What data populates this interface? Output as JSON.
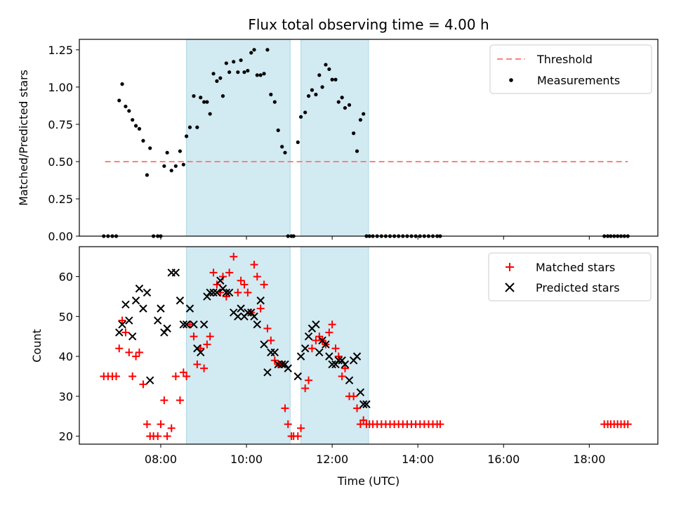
{
  "colors": {
    "band": "#add8e6",
    "threshold": "#ff7f7f",
    "matched": "#ff0000",
    "predicted": "#000000",
    "measurement": "#000000"
  },
  "chart_data": [
    {
      "type": "scatter",
      "title": "Flux total observing time = 4.00 h",
      "xlabel": "",
      "ylabel": "Matched/Predicted stars",
      "x_unit": "hours UTC",
      "xlim": [
        6.1,
        19.6
      ],
      "ylim": [
        0.0,
        1.32
      ],
      "yticks": [
        0.0,
        0.25,
        0.5,
        0.75,
        1.0,
        1.25
      ],
      "ytick_labels": [
        "0.00",
        "0.25",
        "0.50",
        "0.75",
        "1.00",
        "1.25"
      ],
      "xticks": [
        8,
        10,
        12,
        14,
        16,
        18
      ],
      "legend_position": "top-right",
      "observing_windows": [
        [
          8.6,
          11.02
        ],
        [
          11.27,
          12.85
        ]
      ],
      "threshold": {
        "name": "Threshold",
        "x": [
          6.7,
          18.9
        ],
        "y": 0.5
      },
      "series": [
        {
          "name": "Measurements",
          "marker": "dot",
          "x": [
            6.67,
            6.77,
            6.87,
            6.96,
            7.03,
            7.1,
            7.18,
            7.26,
            7.34,
            7.42,
            7.5,
            7.59,
            7.68,
            7.75,
            7.83,
            7.93,
            8.0,
            8.08,
            8.15,
            8.25,
            8.35,
            8.45,
            8.53,
            8.6,
            8.68,
            8.77,
            8.85,
            8.93,
            9.01,
            9.08,
            9.15,
            9.23,
            9.31,
            9.39,
            9.45,
            9.53,
            9.6,
            9.7,
            9.8,
            9.87,
            9.95,
            10.03,
            10.11,
            10.18,
            10.25,
            10.33,
            10.41,
            10.49,
            10.57,
            10.66,
            10.74,
            10.83,
            10.9,
            10.97,
            11.05,
            11.1,
            11.2,
            11.27,
            11.37,
            11.45,
            11.53,
            11.62,
            11.7,
            11.77,
            11.85,
            11.93,
            12.0,
            12.08,
            12.15,
            12.23,
            12.3,
            12.4,
            12.5,
            12.58,
            12.66,
            12.73,
            12.8,
            12.87,
            12.95,
            13.05,
            13.15,
            13.25,
            13.35,
            13.45,
            13.55,
            13.65,
            13.75,
            13.85,
            13.95,
            14.05,
            14.15,
            14.25,
            14.35,
            14.45,
            14.52,
            18.35,
            18.43,
            18.5,
            18.58,
            18.66,
            18.74,
            18.82,
            18.9
          ],
          "y": [
            0.0,
            0.0,
            0.0,
            0.0,
            0.91,
            1.02,
            0.87,
            0.84,
            0.78,
            0.74,
            0.72,
            0.64,
            0.41,
            0.59,
            0.0,
            0.0,
            0.0,
            0.47,
            0.56,
            0.44,
            0.47,
            0.57,
            0.48,
            0.67,
            0.73,
            0.94,
            0.73,
            0.93,
            0.9,
            0.9,
            0.82,
            1.09,
            1.04,
            1.06,
            0.94,
            1.16,
            1.1,
            1.17,
            1.1,
            1.18,
            1.1,
            1.11,
            1.23,
            1.25,
            1.08,
            1.08,
            1.09,
            1.25,
            0.95,
            0.9,
            0.71,
            0.6,
            0.56,
            0.0,
            0.0,
            0.0,
            0.63,
            0.8,
            0.83,
            0.94,
            0.98,
            0.95,
            1.08,
            1.0,
            1.15,
            1.12,
            1.05,
            1.05,
            0.9,
            0.93,
            0.86,
            0.88,
            0.69,
            0.57,
            0.78,
            0.82,
            0.0,
            0.0,
            0.0,
            0.0,
            0.0,
            0.0,
            0.0,
            0.0,
            0.0,
            0.0,
            0.0,
            0.0,
            0.0,
            0.0,
            0.0,
            0.0,
            0.0,
            0.0,
            0.0,
            0.0,
            0.0,
            0.0,
            0.0,
            0.0,
            0.0,
            0.0,
            0.0
          ]
        }
      ]
    },
    {
      "type": "scatter",
      "title": "",
      "xlabel": "Time (UTC)",
      "ylabel": "Count",
      "x_unit": "hours UTC",
      "xlim": [
        6.1,
        19.6
      ],
      "ylim": [
        18.0,
        67.5
      ],
      "yticks": [
        20,
        30,
        40,
        50,
        60
      ],
      "xticks": [
        8,
        10,
        12,
        14,
        16,
        18
      ],
      "xtick_labels": [
        "08:00",
        "10:00",
        "12:00",
        "14:00",
        "16:00",
        "18:00"
      ],
      "legend_position": "top-right",
      "observing_windows": [
        [
          8.6,
          11.02
        ],
        [
          11.27,
          12.85
        ]
      ],
      "series": [
        {
          "name": "Matched stars",
          "marker": "plus",
          "x": [
            6.67,
            6.77,
            6.87,
            6.96,
            7.03,
            7.1,
            7.18,
            7.26,
            7.34,
            7.42,
            7.5,
            7.59,
            7.68,
            7.75,
            7.83,
            7.93,
            8.0,
            8.08,
            8.15,
            8.25,
            8.35,
            8.45,
            8.53,
            8.6,
            8.68,
            8.77,
            8.85,
            8.93,
            9.01,
            9.08,
            9.15,
            9.23,
            9.31,
            9.39,
            9.45,
            9.53,
            9.6,
            9.7,
            9.8,
            9.87,
            9.95,
            10.03,
            10.11,
            10.18,
            10.25,
            10.33,
            10.41,
            10.49,
            10.57,
            10.66,
            10.74,
            10.83,
            10.9,
            10.97,
            11.05,
            11.1,
            11.2,
            11.27,
            11.37,
            11.45,
            11.53,
            11.62,
            11.7,
            11.77,
            11.85,
            11.93,
            12.0,
            12.08,
            12.15,
            12.23,
            12.3,
            12.4,
            12.5,
            12.58,
            12.66,
            12.73,
            12.8,
            12.87,
            12.95,
            13.05,
            13.15,
            13.25,
            13.35,
            13.45,
            13.55,
            13.65,
            13.75,
            13.85,
            13.95,
            14.05,
            14.15,
            14.25,
            14.35,
            14.45,
            14.52,
            18.35,
            18.43,
            18.5,
            18.58,
            18.66,
            18.74,
            18.82,
            18.9
          ],
          "y": [
            35,
            35,
            35,
            35,
            42,
            49,
            46,
            41,
            35,
            40,
            41,
            33,
            23,
            20,
            20,
            20,
            23,
            29,
            20,
            22,
            35,
            29,
            36,
            35,
            48,
            45,
            38,
            42,
            37,
            43,
            45,
            61,
            58,
            56,
            60,
            55,
            61,
            65,
            56,
            59,
            58,
            56,
            51,
            63,
            60,
            52,
            58,
            47,
            44,
            39,
            38,
            38,
            27,
            23,
            20,
            20,
            20,
            22,
            32,
            34,
            42,
            44,
            45,
            44,
            43,
            46,
            48,
            42,
            40,
            35,
            37,
            30,
            30,
            27,
            23,
            24,
            23,
            23,
            23,
            23,
            23,
            23,
            23,
            23,
            23,
            23,
            23,
            23,
            23,
            23,
            23,
            23,
            23,
            23,
            23,
            23,
            23,
            23,
            23,
            23,
            23,
            23,
            23
          ]
        },
        {
          "name": "Predicted stars",
          "marker": "x",
          "x": [
            7.03,
            7.1,
            7.18,
            7.26,
            7.34,
            7.42,
            7.5,
            7.59,
            7.68,
            7.75,
            7.93,
            8.0,
            8.08,
            8.15,
            8.25,
            8.35,
            8.45,
            8.53,
            8.6,
            8.68,
            8.77,
            8.85,
            8.93,
            9.01,
            9.08,
            9.15,
            9.23,
            9.31,
            9.39,
            9.45,
            9.53,
            9.6,
            9.7,
            9.8,
            9.87,
            9.95,
            10.03,
            10.11,
            10.18,
            10.25,
            10.33,
            10.41,
            10.49,
            10.57,
            10.66,
            10.74,
            10.83,
            10.9,
            10.97,
            11.2,
            11.27,
            11.37,
            11.45,
            11.53,
            11.62,
            11.7,
            11.77,
            11.85,
            11.93,
            12.0,
            12.08,
            12.15,
            12.23,
            12.3,
            12.4,
            12.5,
            12.58,
            12.66,
            12.73,
            12.8
          ],
          "y": [
            46,
            48,
            53,
            49,
            45,
            54,
            57,
            52,
            56,
            34,
            49,
            52,
            46,
            47,
            61,
            61,
            54,
            48,
            48,
            52,
            48,
            42,
            41,
            48,
            55,
            56,
            56,
            56,
            59,
            57,
            56,
            56,
            51,
            50,
            52,
            50,
            51,
            51,
            50,
            48,
            54,
            43,
            36,
            41,
            41,
            38,
            38,
            38,
            37,
            35,
            40,
            42,
            45,
            47,
            48,
            41,
            44,
            43,
            40,
            38,
            38,
            39,
            39,
            38,
            34,
            39,
            40,
            31,
            28,
            28
          ]
        }
      ]
    }
  ]
}
